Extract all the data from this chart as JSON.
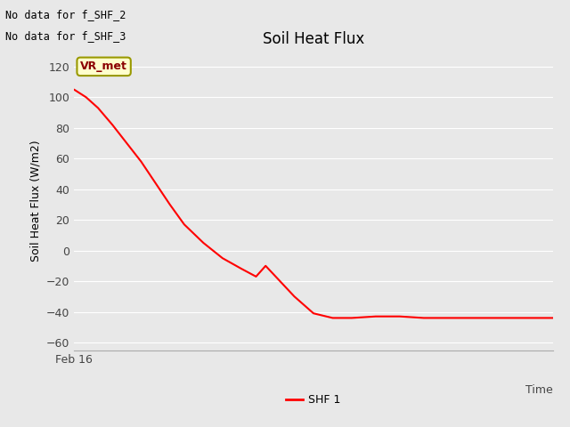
{
  "title": "Soil Heat Flux",
  "ylabel": "Soil Heat Flux (W/m2)",
  "xlabel": "Time",
  "x_tick_label": "Feb 16",
  "ylim": [
    -65,
    130
  ],
  "yticks": [
    -60,
    -40,
    -20,
    0,
    20,
    40,
    60,
    80,
    100,
    120
  ],
  "annotation_lines": [
    "No data for f_SHF_2",
    "No data for f_SHF_3"
  ],
  "legend_label": "SHF 1",
  "line_color": "#ff0000",
  "fig_bg_color": "#e8e8e8",
  "plot_bg_color": "#e8e8e8",
  "vr_met_label": "VR_met",
  "vr_met_bg": "#ffffcc",
  "vr_met_border": "#999900",
  "vr_met_text_color": "#8b0000",
  "x_data": [
    0,
    0.025,
    0.05,
    0.08,
    0.11,
    0.14,
    0.17,
    0.2,
    0.23,
    0.27,
    0.31,
    0.35,
    0.38,
    0.4,
    0.43,
    0.46,
    0.5,
    0.54,
    0.58,
    0.63,
    0.68,
    0.73,
    0.78,
    0.83,
    0.88,
    0.93,
    0.98,
    1.0
  ],
  "y_data": [
    105,
    100,
    93,
    82,
    70,
    58,
    44,
    30,
    17,
    5,
    -5,
    -12,
    -17,
    -10,
    -20,
    -30,
    -41,
    -44,
    -44,
    -43,
    -43,
    -44,
    -44,
    -44,
    -44,
    -44,
    -44,
    -44
  ]
}
